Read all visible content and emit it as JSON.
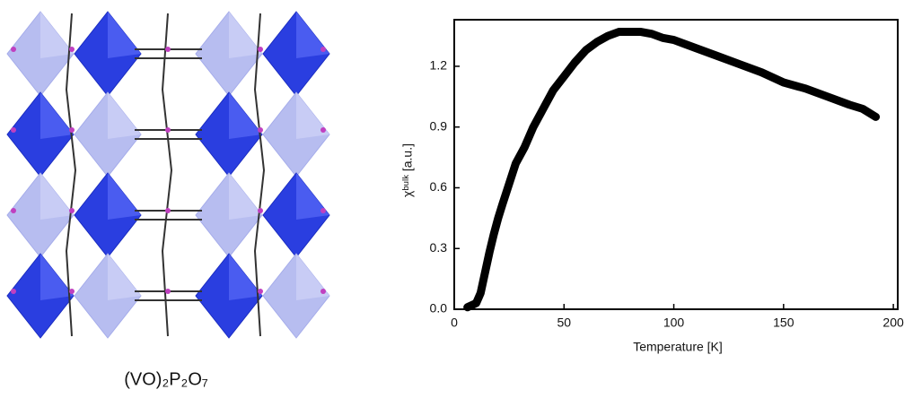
{
  "structure_label": "(VO)₂P₂O₇",
  "chart_data": {
    "type": "line",
    "x_label": "Temperature [K]",
    "y_label": "χᵇᵘˡᵏ [a.u.]",
    "x": [
      6,
      8,
      10,
      12,
      14,
      16,
      18,
      20,
      22,
      25,
      28,
      32,
      36,
      40,
      45,
      50,
      55,
      60,
      65,
      70,
      75,
      80,
      85,
      90,
      95,
      100,
      110,
      120,
      130,
      140,
      150,
      160,
      170,
      180,
      186,
      192
    ],
    "series": [
      {
        "color": "#000000",
        "values": [
          0.01,
          0.02,
          0.03,
          0.08,
          0.18,
          0.28,
          0.37,
          0.45,
          0.52,
          0.62,
          0.72,
          0.8,
          0.9,
          0.98,
          1.08,
          1.15,
          1.22,
          1.28,
          1.32,
          1.35,
          1.37,
          1.37,
          1.37,
          1.36,
          1.34,
          1.33,
          1.29,
          1.25,
          1.21,
          1.17,
          1.12,
          1.09,
          1.05,
          1.01,
          0.99,
          0.95
        ]
      }
    ],
    "xlim": [
      0,
      202
    ],
    "ylim": [
      0,
      1.43
    ],
    "xticks": [
      0,
      50,
      100,
      150,
      200
    ],
    "yticks": [
      {
        "value": 0,
        "label": "0.0"
      },
      0.3,
      0.6,
      0.9,
      1.2
    ]
  }
}
